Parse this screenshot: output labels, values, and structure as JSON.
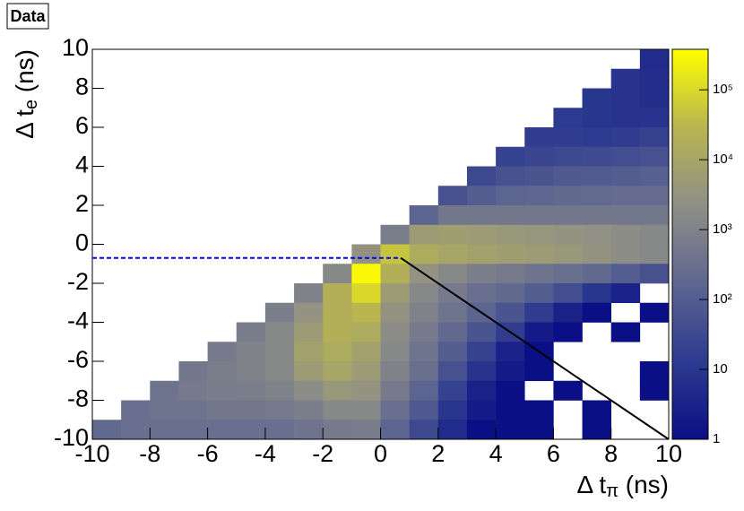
{
  "chart_data": {
    "type": "heatmap",
    "label": "Data",
    "xlabel": [
      "Δ t",
      "π",
      " (ns)"
    ],
    "ylabel": [
      "Δ t",
      "e",
      " (ns)"
    ],
    "xlim": [
      -10,
      10
    ],
    "ylim": [
      -10,
      10
    ],
    "xticks": [
      -10,
      -8,
      -6,
      -4,
      -2,
      0,
      2,
      4,
      6,
      8,
      10
    ],
    "yticks": [
      -10,
      -8,
      -6,
      -4,
      -2,
      0,
      2,
      4,
      6,
      8,
      10
    ],
    "zlim": [
      1,
      380000
    ],
    "zlog": true,
    "zticks": [
      1,
      10,
      {
        "value": 100,
        "label": "10²"
      },
      {
        "value": 1000,
        "label": "10³"
      },
      {
        "value": 10000,
        "label": "10⁴"
      },
      {
        "value": 100000,
        "label": "10⁵"
      }
    ],
    "colorscale": [
      "#0b0f85",
      "#2d3b8f",
      "#5e6690",
      "#8f8f87",
      "#b8b550",
      "#ffff00"
    ],
    "xbins": [
      -10,
      -9,
      -8,
      -7,
      -6,
      -5,
      -4,
      -3,
      -2,
      -1,
      0,
      1,
      2,
      3,
      4,
      5,
      6,
      7,
      8,
      9,
      10
    ],
    "ybins": [
      10,
      9,
      8,
      7,
      6,
      5,
      4,
      3,
      2,
      1,
      0,
      -1,
      -2,
      -3,
      -4,
      -5,
      -6,
      -7,
      -8,
      -9,
      -10
    ],
    "z": [
      [
        null,
        null,
        null,
        null,
        null,
        null,
        null,
        null,
        null,
        null,
        null,
        null,
        null,
        null,
        null,
        null,
        null,
        null,
        null,
        5
      ],
      [
        null,
        null,
        null,
        null,
        null,
        null,
        null,
        null,
        null,
        null,
        null,
        null,
        null,
        null,
        null,
        null,
        null,
        null,
        8,
        6
      ],
      [
        null,
        null,
        null,
        null,
        null,
        null,
        null,
        null,
        null,
        null,
        null,
        null,
        null,
        null,
        null,
        null,
        null,
        10,
        8,
        6
      ],
      [
        null,
        null,
        null,
        null,
        null,
        null,
        null,
        null,
        null,
        null,
        null,
        null,
        null,
        null,
        null,
        null,
        12,
        10,
        8,
        8
      ],
      [
        null,
        null,
        null,
        null,
        null,
        null,
        null,
        null,
        null,
        null,
        null,
        null,
        null,
        null,
        null,
        15,
        15,
        12,
        15,
        20
      ],
      [
        null,
        null,
        null,
        null,
        null,
        null,
        null,
        null,
        null,
        null,
        null,
        null,
        null,
        null,
        20,
        25,
        30,
        35,
        40,
        50
      ],
      [
        null,
        null,
        null,
        null,
        null,
        null,
        null,
        null,
        null,
        null,
        null,
        null,
        null,
        30,
        50,
        60,
        80,
        90,
        100,
        120
      ],
      [
        null,
        null,
        null,
        null,
        null,
        null,
        null,
        null,
        null,
        null,
        null,
        null,
        50,
        100,
        150,
        180,
        200,
        220,
        250,
        250
      ],
      [
        null,
        null,
        null,
        null,
        null,
        null,
        null,
        null,
        null,
        null,
        null,
        150,
        500,
        500,
        500,
        500,
        500,
        500,
        500,
        500
      ],
      [
        null,
        null,
        null,
        null,
        null,
        null,
        null,
        null,
        null,
        null,
        800,
        5000,
        6000,
        5000,
        4000,
        3500,
        3000,
        2500,
        2000,
        1500
      ],
      [
        null,
        null,
        null,
        null,
        null,
        null,
        null,
        null,
        null,
        3000,
        50000,
        15000,
        10000,
        8000,
        6000,
        5000,
        4000,
        3000,
        2000,
        1500
      ],
      [
        null,
        null,
        null,
        null,
        null,
        null,
        null,
        null,
        1500,
        300000,
        20000,
        3000,
        1500,
        800,
        600,
        400,
        300,
        200,
        100,
        50
      ],
      [
        null,
        null,
        null,
        null,
        null,
        null,
        null,
        1000,
        20000,
        100000,
        5000,
        1500,
        600,
        300,
        200,
        100,
        40,
        10,
        3,
        null
      ],
      [
        null,
        null,
        null,
        null,
        null,
        null,
        800,
        3000,
        20000,
        30000,
        3000,
        1000,
        400,
        150,
        60,
        15,
        3,
        1,
        null,
        1
      ],
      [
        null,
        null,
        null,
        null,
        null,
        700,
        1500,
        5000,
        20000,
        15000,
        2000,
        600,
        200,
        60,
        15,
        2,
        1,
        null,
        1,
        null
      ],
      [
        null,
        null,
        null,
        null,
        600,
        1000,
        1500,
        8000,
        15000,
        8000,
        1500,
        400,
        100,
        20,
        3,
        1,
        null,
        null,
        null,
        null
      ],
      [
        null,
        null,
        null,
        500,
        800,
        1000,
        1500,
        5000,
        10000,
        5000,
        1000,
        300,
        50,
        8,
        2,
        1,
        null,
        null,
        null,
        1
      ],
      [
        null,
        null,
        400,
        600,
        700,
        800,
        1000,
        2000,
        4000,
        3000,
        600,
        150,
        20,
        3,
        1,
        null,
        1,
        null,
        null,
        1
      ],
      [
        null,
        300,
        400,
        400,
        500,
        500,
        600,
        800,
        1500,
        1500,
        300,
        80,
        10,
        2,
        1,
        1,
        null,
        1,
        null,
        null
      ],
      [
        200,
        300,
        300,
        300,
        300,
        300,
        300,
        400,
        600,
        700,
        150,
        30,
        5,
        1,
        1,
        1,
        null,
        1,
        null,
        null
      ]
    ],
    "lines": [
      {
        "x": [
          -10,
          0.7
        ],
        "y": [
          -0.7,
          -0.7
        ],
        "color": "#0000ff",
        "dashed": true
      },
      {
        "x": [
          0.7,
          10
        ],
        "y": [
          -0.7,
          -10
        ],
        "color": "#000000",
        "dashed": false
      }
    ]
  }
}
